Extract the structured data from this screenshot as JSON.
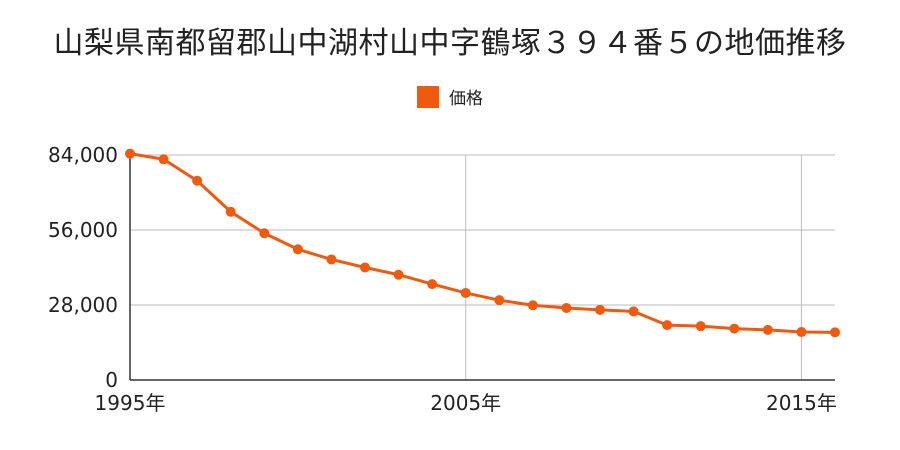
{
  "title": "山梨県南都留郡山中湖村山中字鶴塚３９４番５の地価推移",
  "legend": {
    "label": "価格",
    "color": "#f05a0f"
  },
  "chart_data": {
    "type": "line",
    "title": "山梨県南都留郡山中湖村山中字鶴塚３９４番５の地価推移",
    "xlabel": "",
    "ylabel": "",
    "x": [
      1995,
      1996,
      1997,
      1998,
      1999,
      2000,
      2001,
      2002,
      2003,
      2004,
      2005,
      2006,
      2007,
      2008,
      2009,
      2010,
      2011,
      2012,
      2013,
      2014,
      2015,
      2016
    ],
    "series": [
      {
        "name": "価格",
        "color": "#f05a0f",
        "values": [
          84500,
          82400,
          74400,
          62800,
          54800,
          48800,
          45000,
          42000,
          39300,
          35800,
          32500,
          29800,
          27900,
          26900,
          26200,
          25600,
          20500,
          20100,
          19200,
          18700,
          17900,
          17800
        ]
      }
    ],
    "ylim": [
      0,
      84000
    ],
    "xlim": [
      1995,
      2016
    ],
    "y_ticks": [
      0,
      28000,
      56000,
      84000
    ],
    "y_tick_labels": [
      "0",
      "28,000",
      "56,000",
      "84,000"
    ],
    "x_ticks": [
      1995,
      2005,
      2015
    ],
    "x_tick_labels": [
      "1995年",
      "2005年",
      "2015年"
    ],
    "grid": true,
    "legend_position": "top-center"
  }
}
